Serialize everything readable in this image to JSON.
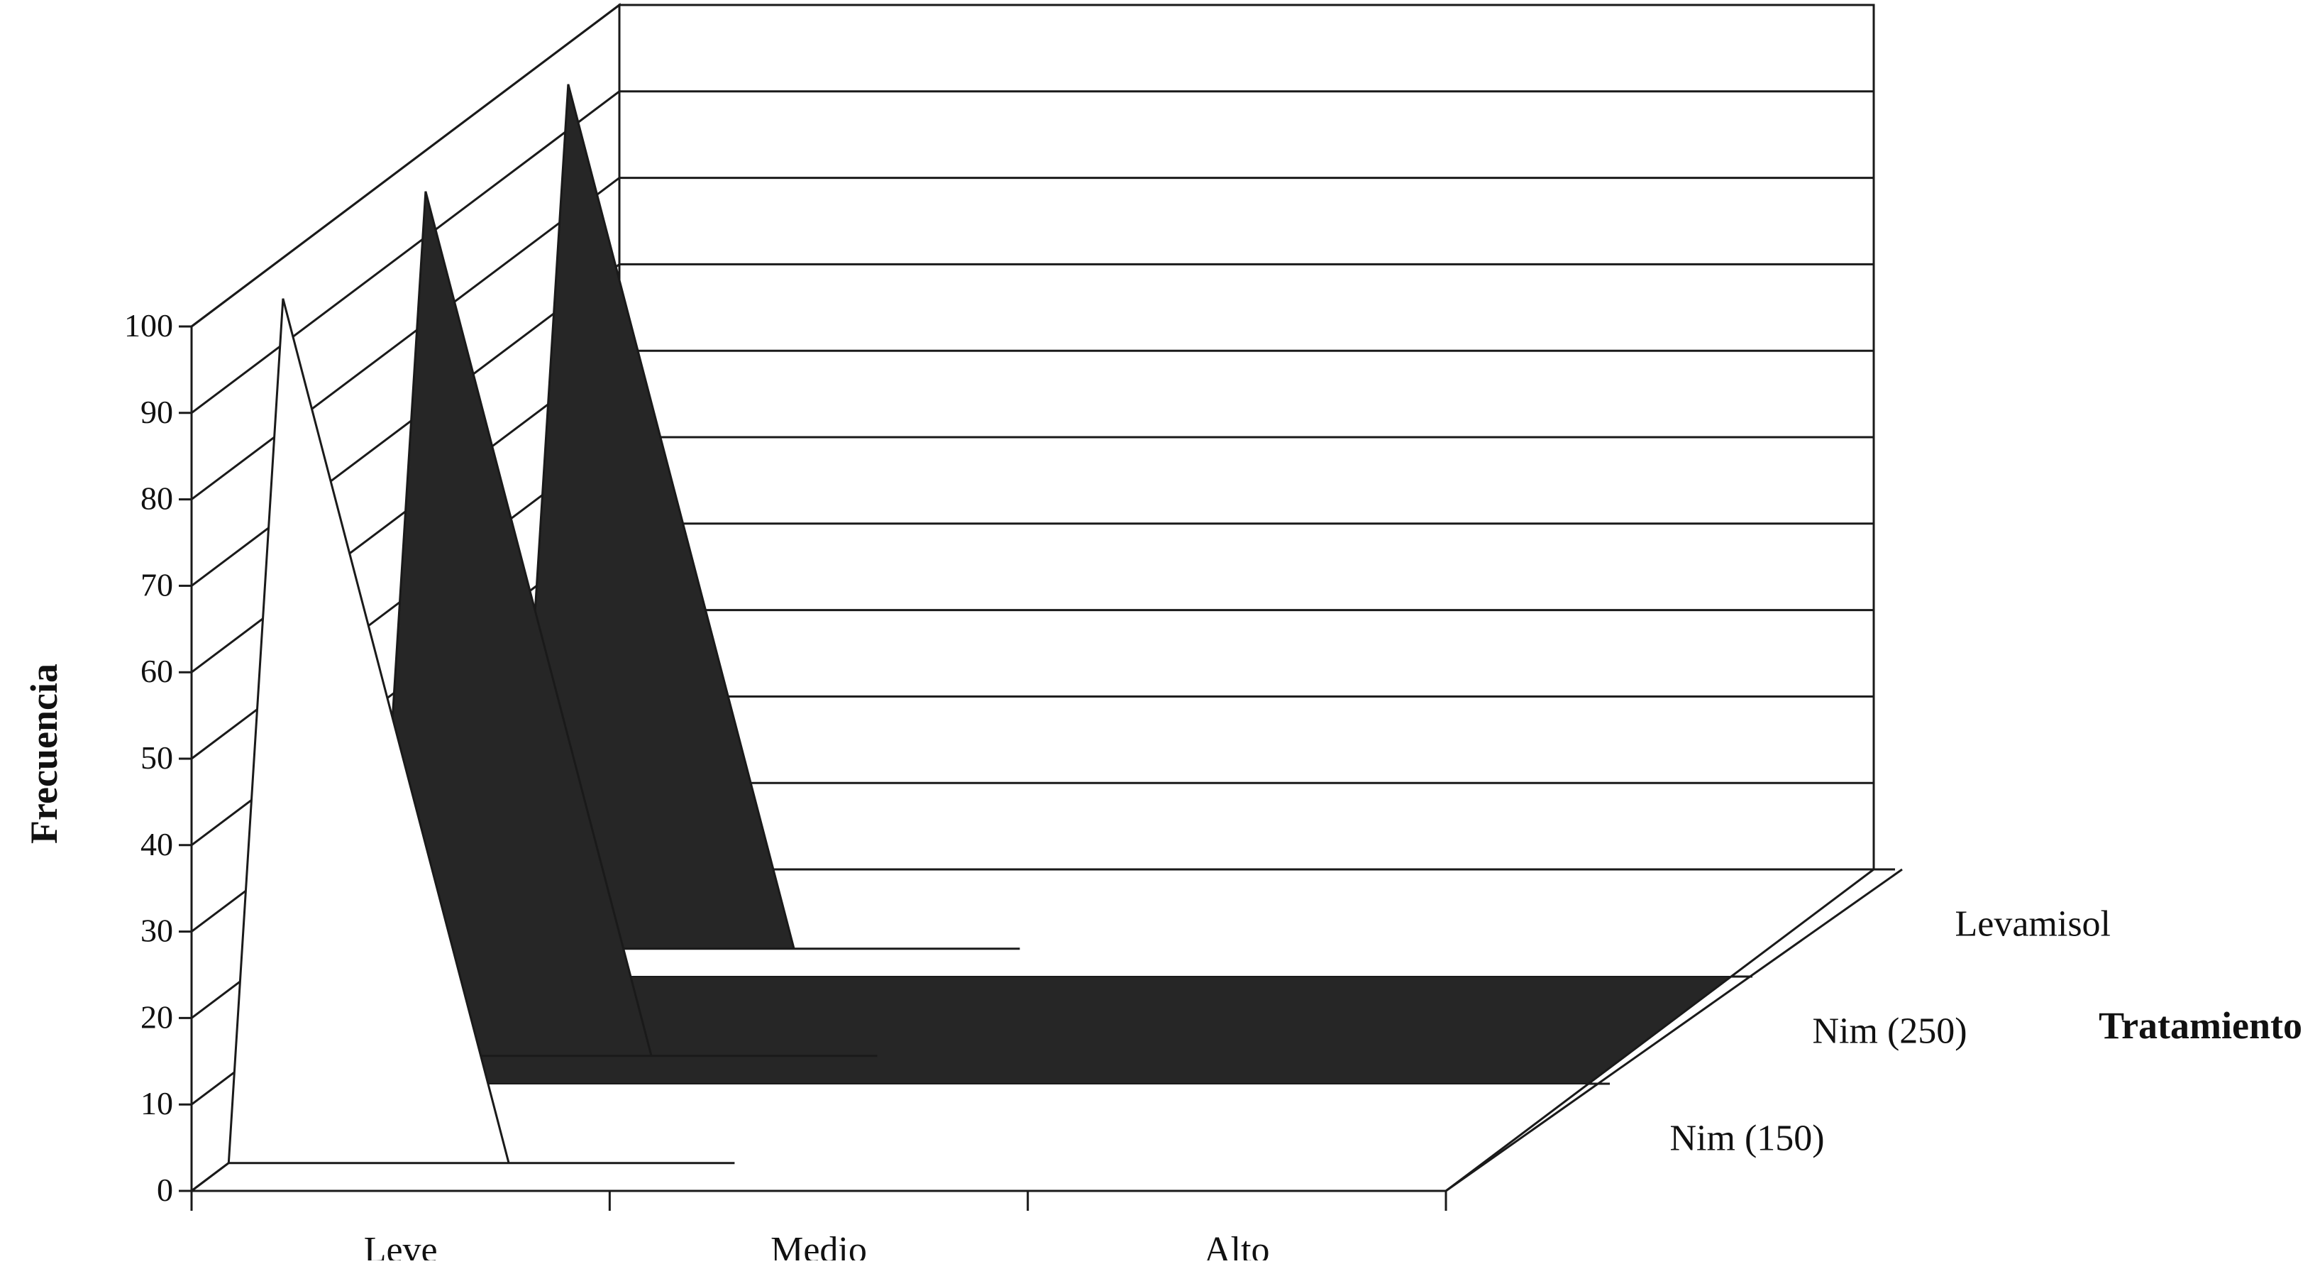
{
  "chart_data": {
    "type": "area",
    "title": "",
    "categories": [
      "Leve",
      "Medio",
      "Alto"
    ],
    "series": [
      {
        "name": "Nim (150)",
        "values": [
          100,
          0,
          0
        ]
      },
      {
        "name": "Nim (250)",
        "values": [
          100,
          0,
          0
        ]
      },
      {
        "name": "Levamisol",
        "values": [
          100,
          0,
          0
        ]
      }
    ],
    "ylabel": "Frecuencia",
    "zlabel": "Tratamiento",
    "ylim": [
      0,
      100
    ],
    "yticks": [
      "0",
      "10",
      "20",
      "30",
      "40",
      "50",
      "60",
      "70",
      "80",
      "90",
      "100"
    ],
    "grid": true,
    "colors": {
      "Nim (150)": "#ffffff",
      "Nim (250)": "#262626",
      "Levamisol": "#262626"
    }
  }
}
